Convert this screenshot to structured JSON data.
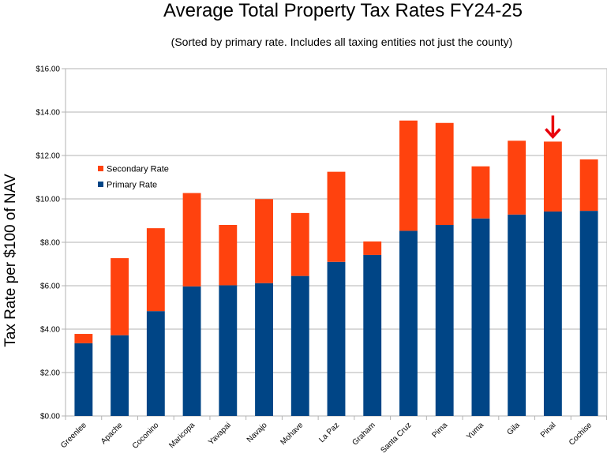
{
  "chart_data": {
    "type": "bar",
    "stacked": true,
    "title": "Average Total Property Tax Rates FY24-25",
    "subtitle": "(Sorted by primary rate. Includes all taxing entities not just the county)",
    "ylabel": "Tax Rate per $100 of NAV",
    "xlabel": "",
    "ylim": [
      0,
      16
    ],
    "yticks": [
      "$0.00",
      "$2.00",
      "$4.00",
      "$6.00",
      "$8.00",
      "$10.00",
      "$12.00",
      "$14.00",
      "$16.00"
    ],
    "categories": [
      "Greenlee",
      "Apache",
      "Coconino",
      "Maricopa",
      "Yavapai",
      "Navajo",
      "Mohave",
      "La Paz",
      "Graham",
      "Santa Cruz",
      "Pima",
      "Yuma",
      "Gila",
      "Pinal",
      "Cochise"
    ],
    "series": [
      {
        "name": "Primary Rate",
        "color": "#004586",
        "values": [
          3.35,
          3.72,
          4.83,
          5.97,
          6.02,
          6.12,
          6.45,
          7.1,
          7.42,
          8.53,
          8.8,
          9.1,
          9.28,
          9.42,
          9.45
        ]
      },
      {
        "name": "Secondary Rate",
        "color": "#ff420e",
        "values": [
          0.43,
          3.55,
          3.82,
          4.3,
          2.78,
          3.87,
          2.9,
          4.15,
          0.62,
          5.08,
          4.7,
          2.4,
          3.4,
          3.22,
          2.37
        ]
      }
    ],
    "legend": {
      "position": "left-middle"
    },
    "grid": true,
    "highlight": {
      "category": "Pinal",
      "marker": "red-down-arrow",
      "color": "#e8000b"
    }
  }
}
